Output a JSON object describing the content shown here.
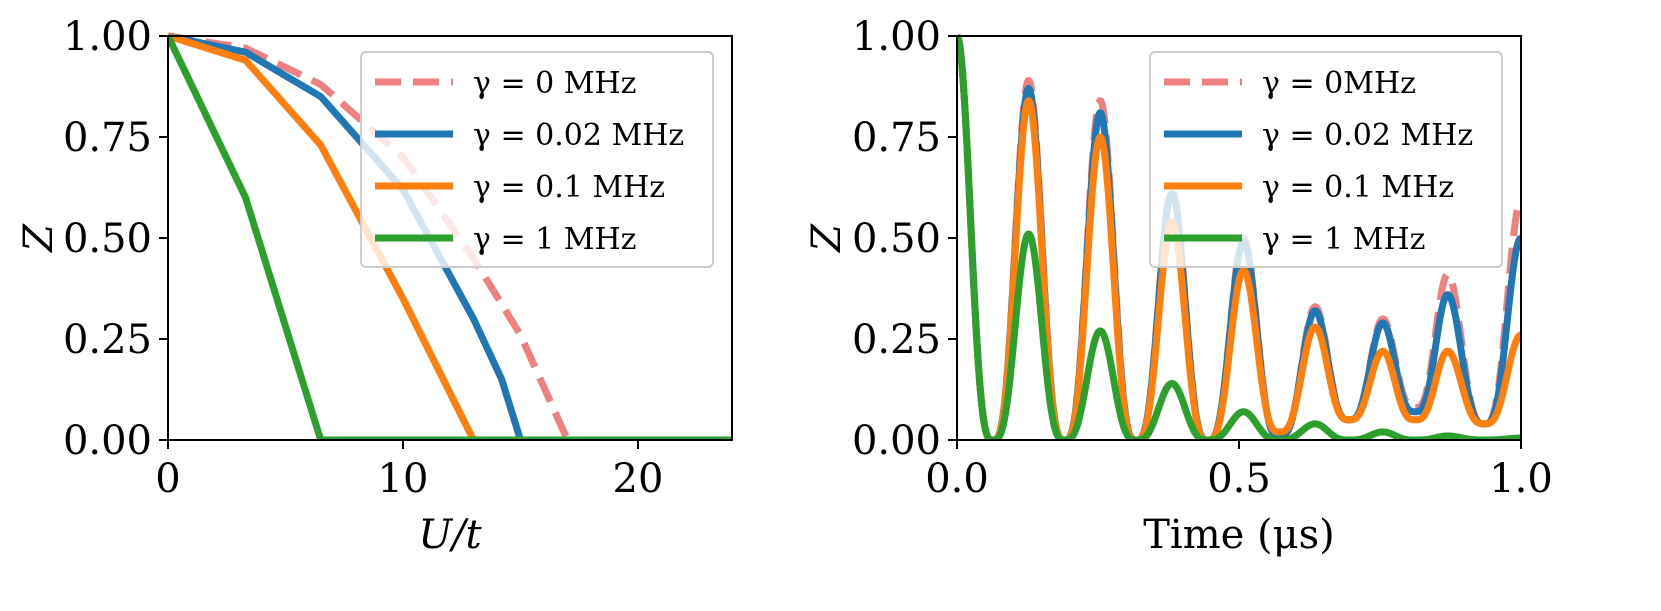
{
  "chart_data": [
    {
      "type": "line",
      "title": "",
      "xlabel": "U/t",
      "ylabel": "Z",
      "xlim": [
        0,
        24
      ],
      "ylim": [
        0,
        1
      ],
      "xticks": [
        0,
        10,
        20
      ],
      "xtick_labels": [
        "0",
        "10",
        "20"
      ],
      "yticks": [
        0,
        0.25,
        0.5,
        0.75,
        1.0
      ],
      "ytick_labels": [
        "0.00",
        "0.25",
        "0.50",
        "0.75",
        "1.00"
      ],
      "legend_position": "top-right",
      "series": [
        {
          "name": "γ = 0 MHz",
          "color": "#f08080",
          "style": "dashed",
          "x": [
            0,
            3.3,
            6.5,
            10,
            13,
            15,
            17,
            24
          ],
          "y": [
            1.0,
            0.97,
            0.88,
            0.7,
            0.45,
            0.26,
            0.0,
            0.0
          ]
        },
        {
          "name": "γ = 0.02 MHz",
          "color": "#1f77b4",
          "style": "solid",
          "x": [
            0,
            3.3,
            6.5,
            10,
            13,
            14.2,
            15,
            24
          ],
          "y": [
            1.0,
            0.96,
            0.85,
            0.62,
            0.3,
            0.15,
            0.0,
            0.0
          ]
        },
        {
          "name": "γ = 0.1 MHz",
          "color": "#ff7f0e",
          "style": "solid",
          "x": [
            0,
            3.3,
            6.5,
            10,
            13,
            24
          ],
          "y": [
            1.0,
            0.94,
            0.73,
            0.35,
            0.0,
            0.0
          ]
        },
        {
          "name": "γ = 1 MHz",
          "color": "#2ca02c",
          "style": "solid",
          "x": [
            0,
            3.3,
            6.5,
            24
          ],
          "y": [
            1.0,
            0.6,
            0.0,
            0.0
          ]
        }
      ]
    },
    {
      "type": "line",
      "title": "",
      "xlabel": "Time (μs)",
      "ylabel": "Z",
      "xlim": [
        0,
        1
      ],
      "ylim": [
        0,
        1
      ],
      "xticks": [
        0,
        0.5,
        1.0
      ],
      "xtick_labels": [
        "0.0",
        "0.5",
        "1.0"
      ],
      "yticks": [
        0,
        0.25,
        0.5,
        0.75,
        1.0
      ],
      "ytick_labels": [
        "0.00",
        "0.25",
        "0.50",
        "0.75",
        "1.00"
      ],
      "legend_position": "top-right",
      "oscillation_period_us": 0.127,
      "series": [
        {
          "name": "γ = 0MHz",
          "color": "#f08080",
          "style": "dashed",
          "peak_times": [
            0,
            0.127,
            0.254,
            0.381,
            0.508,
            0.635,
            0.755,
            0.87,
            1.0
          ],
          "peaks": [
            1.0,
            0.89,
            0.84,
            0.62,
            0.5,
            0.33,
            0.3,
            0.41,
            0.59
          ],
          "troughs": [
            0.0,
            0.0,
            0.0,
            0.0,
            0.01,
            0.05,
            0.08,
            0.04
          ]
        },
        {
          "name": "γ = 0.02 MHz",
          "color": "#1f77b4",
          "style": "solid",
          "peak_times": [
            0,
            0.127,
            0.254,
            0.381,
            0.508,
            0.635,
            0.755,
            0.87,
            1.0
          ],
          "peaks": [
            1.0,
            0.87,
            0.81,
            0.61,
            0.49,
            0.32,
            0.29,
            0.36,
            0.5
          ],
          "troughs": [
            0.0,
            0.0,
            0.0,
            0.0,
            0.01,
            0.05,
            0.07,
            0.04
          ]
        },
        {
          "name": "γ = 0.1 MHz",
          "color": "#ff7f0e",
          "style": "solid",
          "peak_times": [
            0,
            0.127,
            0.254,
            0.381,
            0.508,
            0.635,
            0.755,
            0.87,
            1.0
          ],
          "peaks": [
            1.0,
            0.84,
            0.75,
            0.54,
            0.42,
            0.28,
            0.22,
            0.22,
            0.26
          ],
          "troughs": [
            0.0,
            0.0,
            0.0,
            0.0,
            0.02,
            0.05,
            0.05,
            0.04
          ]
        },
        {
          "name": "γ = 1 MHz",
          "color": "#2ca02c",
          "style": "solid",
          "peak_times": [
            0,
            0.127,
            0.254,
            0.381,
            0.508,
            0.635,
            0.755,
            0.87,
            1.0
          ],
          "peaks": [
            1.0,
            0.51,
            0.27,
            0.14,
            0.07,
            0.04,
            0.02,
            0.01,
            0.005
          ],
          "troughs": [
            0.0,
            0.0,
            0.0,
            0.0,
            0.0,
            0.0,
            0.0,
            0.0
          ]
        }
      ]
    }
  ]
}
